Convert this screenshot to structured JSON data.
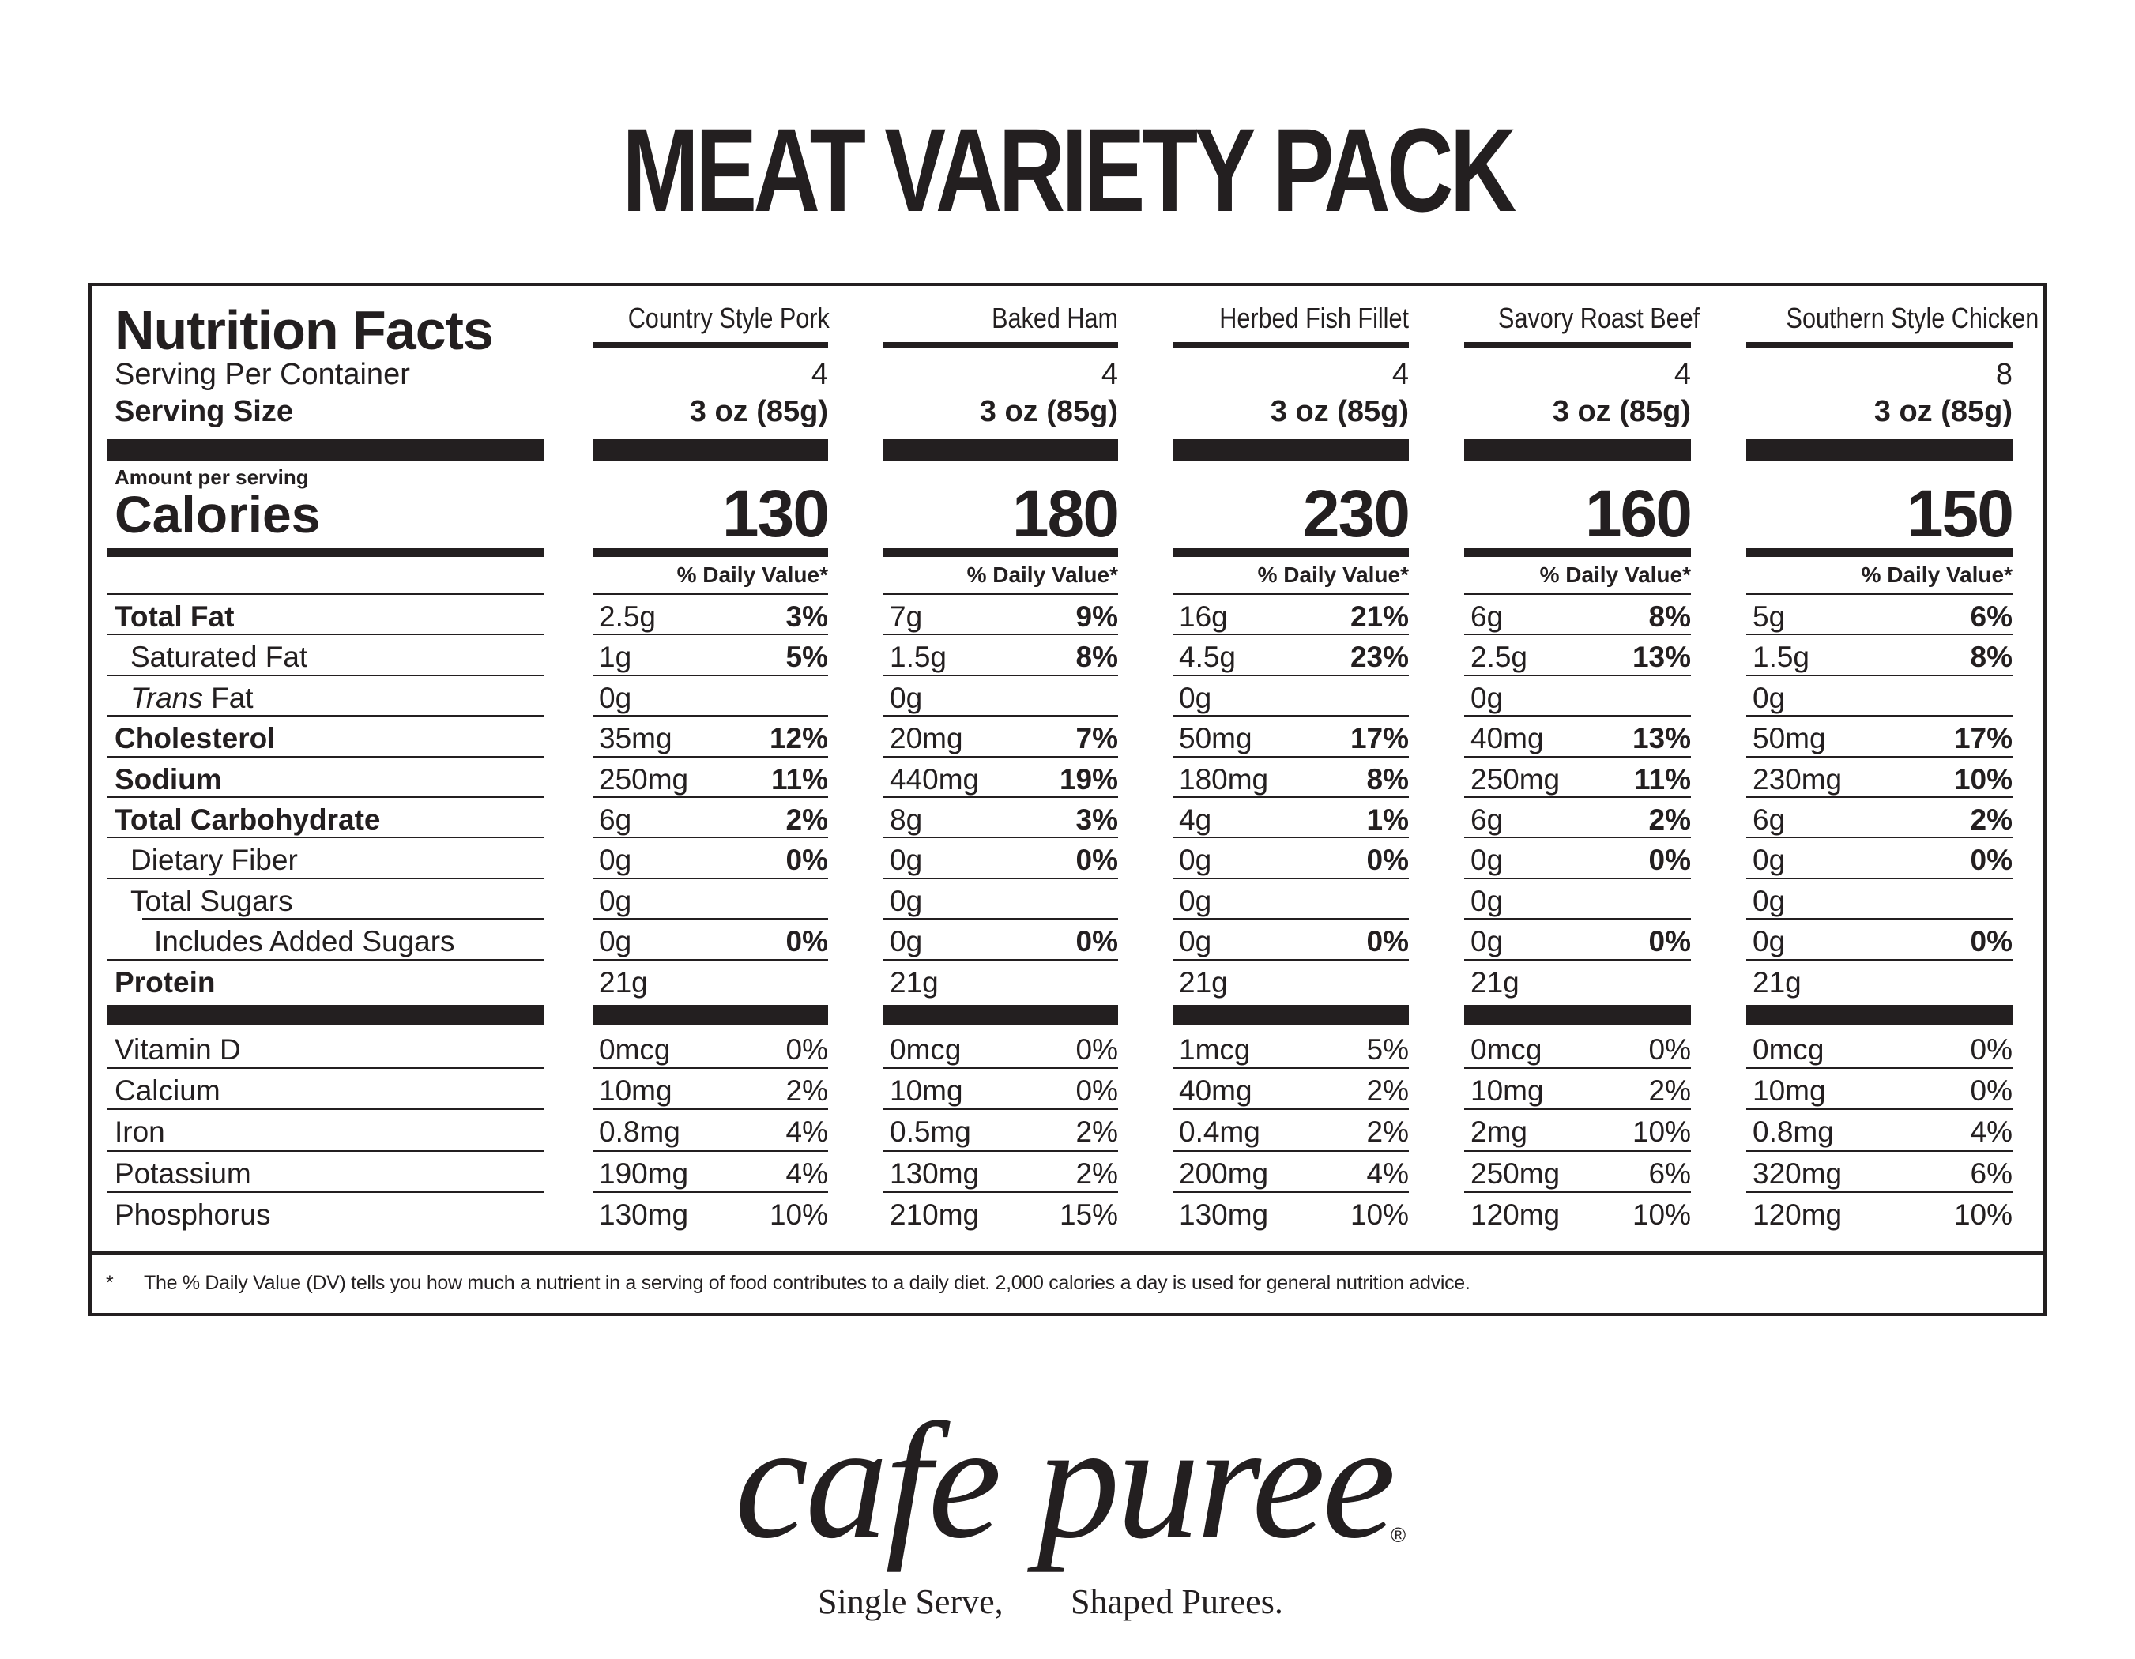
{
  "title": "MEAT VARIETY PACK",
  "panel": {
    "heading": "Nutrition Facts",
    "serving_per_container_label": "Serving Per Container",
    "serving_size_label": "Serving Size",
    "amount_per_serving_label": "Amount per serving",
    "calories_label": "Calories",
    "daily_value_label": "% Daily Value*"
  },
  "nutrient_labels": [
    {
      "label": "Total Fat",
      "style": "bold",
      "indent": 0
    },
    {
      "label": "Saturated Fat",
      "style": "normal",
      "indent": 1
    },
    {
      "label_italic": "Trans",
      "label": " Fat",
      "style": "normal",
      "indent": 1
    },
    {
      "label": "Cholesterol",
      "style": "bold",
      "indent": 0
    },
    {
      "label": "Sodium",
      "style": "bold",
      "indent": 0
    },
    {
      "label": "Total Carbohydrate",
      "style": "bold",
      "indent": 0
    },
    {
      "label": "Dietary Fiber",
      "style": "normal",
      "indent": 1
    },
    {
      "label": "Total Sugars",
      "style": "normal",
      "indent": 1
    },
    {
      "label": "Includes Added Sugars",
      "style": "normal",
      "indent": 2
    },
    {
      "label": "Protein",
      "style": "bold",
      "indent": 0
    }
  ],
  "vitamin_labels": [
    "Vitamin D",
    "Calcium",
    "Iron",
    "Potassium",
    "Phosphorus"
  ],
  "products": [
    {
      "name": "Country Style Pork",
      "servings": "4",
      "serving_size": "3 oz (85g)",
      "calories": "130",
      "nutrients": [
        {
          "amount": "2.5g",
          "dv": "3%"
        },
        {
          "amount": "1g",
          "dv": "5%"
        },
        {
          "amount": "0g",
          "dv": ""
        },
        {
          "amount": "35mg",
          "dv": "12%"
        },
        {
          "amount": "250mg",
          "dv": "11%"
        },
        {
          "amount": "6g",
          "dv": "2%"
        },
        {
          "amount": "0g",
          "dv": "0%"
        },
        {
          "amount": "0g",
          "dv": ""
        },
        {
          "amount": "0g",
          "dv": "0%"
        },
        {
          "amount": "21g",
          "dv": ""
        }
      ],
      "vitamins": [
        {
          "amount": "0mcg",
          "dv": "0%"
        },
        {
          "amount": "10mg",
          "dv": "2%"
        },
        {
          "amount": "0.8mg",
          "dv": "4%"
        },
        {
          "amount": "190mg",
          "dv": "4%"
        },
        {
          "amount": "130mg",
          "dv": "10%"
        }
      ]
    },
    {
      "name": "Baked Ham",
      "servings": "4",
      "serving_size": "3 oz (85g)",
      "calories": "180",
      "nutrients": [
        {
          "amount": "7g",
          "dv": "9%"
        },
        {
          "amount": "1.5g",
          "dv": "8%"
        },
        {
          "amount": "0g",
          "dv": ""
        },
        {
          "amount": "20mg",
          "dv": "7%"
        },
        {
          "amount": "440mg",
          "dv": "19%"
        },
        {
          "amount": "8g",
          "dv": "3%"
        },
        {
          "amount": "0g",
          "dv": "0%"
        },
        {
          "amount": "0g",
          "dv": ""
        },
        {
          "amount": "0g",
          "dv": "0%"
        },
        {
          "amount": "21g",
          "dv": ""
        }
      ],
      "vitamins": [
        {
          "amount": "0mcg",
          "dv": "0%"
        },
        {
          "amount": "10mg",
          "dv": "0%"
        },
        {
          "amount": "0.5mg",
          "dv": "2%"
        },
        {
          "amount": "130mg",
          "dv": "2%"
        },
        {
          "amount": "210mg",
          "dv": "15%"
        }
      ]
    },
    {
      "name": "Herbed Fish Fillet",
      "servings": "4",
      "serving_size": "3 oz (85g)",
      "calories": "230",
      "nutrients": [
        {
          "amount": "16g",
          "dv": "21%"
        },
        {
          "amount": "4.5g",
          "dv": "23%"
        },
        {
          "amount": "0g",
          "dv": ""
        },
        {
          "amount": "50mg",
          "dv": "17%"
        },
        {
          "amount": "180mg",
          "dv": "8%"
        },
        {
          "amount": "4g",
          "dv": "1%"
        },
        {
          "amount": "0g",
          "dv": "0%"
        },
        {
          "amount": "0g",
          "dv": ""
        },
        {
          "amount": "0g",
          "dv": "0%"
        },
        {
          "amount": "21g",
          "dv": ""
        }
      ],
      "vitamins": [
        {
          "amount": "1mcg",
          "dv": "5%"
        },
        {
          "amount": "40mg",
          "dv": "2%"
        },
        {
          "amount": "0.4mg",
          "dv": "2%"
        },
        {
          "amount": "200mg",
          "dv": "4%"
        },
        {
          "amount": "130mg",
          "dv": "10%"
        }
      ]
    },
    {
      "name": "Savory Roast Beef",
      "servings": "4",
      "serving_size": "3 oz (85g)",
      "calories": "160",
      "nutrients": [
        {
          "amount": "6g",
          "dv": "8%"
        },
        {
          "amount": "2.5g",
          "dv": "13%"
        },
        {
          "amount": "0g",
          "dv": ""
        },
        {
          "amount": "40mg",
          "dv": "13%"
        },
        {
          "amount": "250mg",
          "dv": "11%"
        },
        {
          "amount": "6g",
          "dv": "2%"
        },
        {
          "amount": "0g",
          "dv": "0%"
        },
        {
          "amount": "0g",
          "dv": ""
        },
        {
          "amount": "0g",
          "dv": "0%"
        },
        {
          "amount": "21g",
          "dv": ""
        }
      ],
      "vitamins": [
        {
          "amount": "0mcg",
          "dv": "0%"
        },
        {
          "amount": "10mg",
          "dv": "2%"
        },
        {
          "amount": "2mg",
          "dv": "10%"
        },
        {
          "amount": "250mg",
          "dv": "6%"
        },
        {
          "amount": "120mg",
          "dv": "10%"
        }
      ]
    },
    {
      "name": "Southern Style Chicken",
      "servings": "8",
      "serving_size": "3 oz (85g)",
      "calories": "150",
      "nutrients": [
        {
          "amount": "5g",
          "dv": "6%"
        },
        {
          "amount": "1.5g",
          "dv": "8%"
        },
        {
          "amount": "0g",
          "dv": ""
        },
        {
          "amount": "50mg",
          "dv": "17%"
        },
        {
          "amount": "230mg",
          "dv": "10%"
        },
        {
          "amount": "6g",
          "dv": "2%"
        },
        {
          "amount": "0g",
          "dv": "0%"
        },
        {
          "amount": "0g",
          "dv": ""
        },
        {
          "amount": "0g",
          "dv": "0%"
        },
        {
          "amount": "21g",
          "dv": ""
        }
      ],
      "vitamins": [
        {
          "amount": "0mcg",
          "dv": "0%"
        },
        {
          "amount": "10mg",
          "dv": "0%"
        },
        {
          "amount": "0.8mg",
          "dv": "4%"
        },
        {
          "amount": "320mg",
          "dv": "6%"
        },
        {
          "amount": "120mg",
          "dv": "10%"
        }
      ]
    }
  ],
  "footnote": {
    "marker": "*",
    "text": "The % Daily Value (DV) tells you how much a nutrient in a serving of food contributes to a daily diet. 2,000 calories a day is used for general nutrition advice."
  },
  "brand": {
    "name": "cafe puree",
    "registered_mark": "®",
    "tagline_left": "Single Serve,",
    "tagline_right": "Shaped Purees."
  },
  "colors": {
    "ink": "#231f20",
    "background": "#ffffff"
  }
}
